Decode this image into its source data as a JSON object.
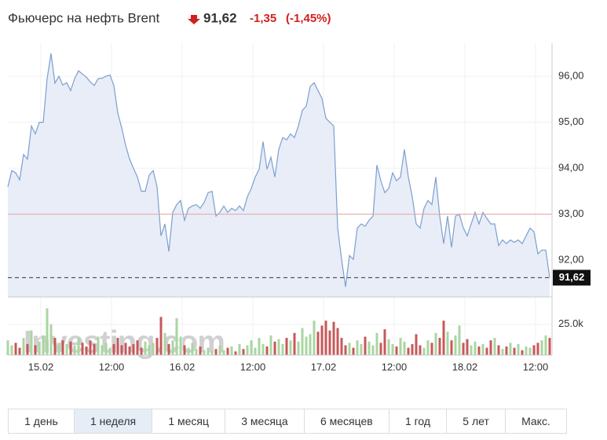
{
  "header": {
    "title": "Фьючерс на нефть Brent",
    "price": "91,62",
    "change": "-1,35",
    "change_pct": "(-1,45%)"
  },
  "chart_data": {
    "type": "area",
    "watermark": "Investing.com",
    "line_color": "#7d9fd0",
    "fill_color": "#e8edf7",
    "up_color": "#a9d6a0",
    "down_color": "#c7585a",
    "reference_value": 93,
    "reference_color": "#e3a5a0",
    "last": {
      "value": 91.62,
      "label": "91,62"
    },
    "xlim": [
      -336,
      5208
    ],
    "xticks": [
      {
        "value": 0,
        "label": "15.02"
      },
      {
        "value": 720,
        "label": "12:00"
      },
      {
        "value": 1440,
        "label": "16.02"
      },
      {
        "value": 2160,
        "label": "12:00"
      },
      {
        "value": 2880,
        "label": "17.02"
      },
      {
        "value": 3600,
        "label": "12:00"
      },
      {
        "value": 4320,
        "label": "18.02"
      },
      {
        "value": 5040,
        "label": "12:00"
      }
    ],
    "ylim": [
      91.2,
      96.72
    ],
    "yticks": [
      {
        "value": 92,
        "label": "92,00"
      },
      {
        "value": 93,
        "label": "93,00"
      },
      {
        "value": 94,
        "label": "94,00"
      },
      {
        "value": 95,
        "label": "95,00"
      },
      {
        "value": 96,
        "label": "96,00"
      }
    ],
    "y2lim": [
      0,
      44000
    ],
    "y2ticks": [
      {
        "value": 25000,
        "label": "25.0k"
      }
    ],
    "grid": true,
    "x": [
      -336,
      -296,
      -256,
      -216,
      -176,
      -136,
      -96,
      -56,
      -16,
      24,
      64,
      104,
      144,
      184,
      224,
      264,
      304,
      344,
      384,
      424,
      464,
      504,
      544,
      584,
      624,
      664,
      704,
      744,
      784,
      824,
      864,
      904,
      944,
      984,
      1024,
      1064,
      1104,
      1144,
      1184,
      1224,
      1264,
      1304,
      1344,
      1384,
      1424,
      1464,
      1504,
      1544,
      1584,
      1624,
      1664,
      1704,
      1744,
      1784,
      1824,
      1864,
      1904,
      1944,
      1984,
      2024,
      2064,
      2104,
      2144,
      2184,
      2224,
      2264,
      2304,
      2344,
      2384,
      2424,
      2464,
      2504,
      2544,
      2584,
      2624,
      2664,
      2704,
      2744,
      2784,
      2824,
      2864,
      2904,
      2944,
      2984,
      3024,
      3064,
      3104,
      3144,
      3184,
      3224,
      3264,
      3304,
      3344,
      3384,
      3424,
      3464,
      3504,
      3544,
      3584,
      3624,
      3664,
      3704,
      3744,
      3784,
      3824,
      3864,
      3904,
      3944,
      3984,
      4024,
      4064,
      4104,
      4144,
      4184,
      4224,
      4264,
      4304,
      4344,
      4384,
      4424,
      4464,
      4504,
      4544,
      4584,
      4624,
      4664,
      4704,
      4744,
      4784,
      4824,
      4864,
      4904,
      4944,
      4984,
      5024,
      5064,
      5104,
      5144,
      5184
    ],
    "values": [
      93.6,
      93.95,
      93.9,
      93.75,
      94.3,
      94.2,
      94.92,
      94.75,
      95.0,
      95.0,
      95.95,
      96.5,
      95.85,
      96.0,
      95.81,
      95.86,
      95.69,
      95.95,
      96.12,
      96.05,
      95.98,
      95.88,
      95.8,
      95.95,
      95.96,
      96.0,
      96.03,
      95.8,
      95.2,
      94.88,
      94.5,
      94.2,
      94.0,
      93.81,
      93.5,
      93.5,
      93.85,
      93.95,
      93.6,
      92.53,
      92.79,
      92.19,
      93.04,
      93.21,
      93.3,
      92.87,
      93.13,
      93.18,
      93.21,
      93.13,
      93.26,
      93.47,
      93.5,
      92.96,
      93.04,
      93.18,
      93.04,
      93.13,
      93.08,
      93.18,
      93.08,
      93.38,
      93.56,
      93.81,
      93.98,
      94.58,
      93.98,
      94.24,
      93.81,
      94.41,
      94.67,
      94.62,
      94.75,
      94.67,
      94.92,
      95.26,
      95.35,
      95.78,
      95.86,
      95.69,
      95.52,
      95.09,
      95.0,
      94.92,
      92.7,
      92.02,
      91.42,
      92.1,
      92.02,
      92.7,
      92.79,
      92.74,
      92.87,
      92.96,
      94.07,
      93.73,
      93.47,
      93.56,
      93.9,
      93.73,
      93.81,
      94.41,
      93.81,
      93.38,
      92.79,
      92.7,
      93.13,
      93.3,
      93.21,
      93.81,
      92.96,
      92.36,
      92.96,
      92.28,
      92.96,
      93.0,
      92.7,
      92.53,
      92.79,
      93.04,
      92.79,
      93.04,
      92.91,
      92.79,
      92.79,
      92.32,
      92.44,
      92.36,
      92.44,
      92.39,
      92.44,
      92.36,
      92.53,
      92.7,
      92.62,
      92.14,
      92.22,
      92.22,
      91.62
    ],
    "volume": [
      12000,
      8000,
      10000,
      6000,
      14000,
      9000,
      20000,
      8000,
      11000,
      16000,
      38000,
      25000,
      14000,
      10000,
      12000,
      9000,
      11000,
      8000,
      14000,
      10000,
      7000,
      12000,
      9000,
      15000,
      8000,
      10000,
      6000,
      9000,
      14000,
      8000,
      10000,
      7000,
      9000,
      12000,
      6000,
      11000,
      8000,
      10000,
      14000,
      31000,
      18000,
      9000,
      12000,
      30000,
      15000,
      8000,
      6000,
      10000,
      5000,
      7000,
      4000,
      6000,
      3000,
      5000,
      8000,
      4000,
      6000,
      7000,
      3000,
      9000,
      5000,
      8000,
      12000,
      6000,
      14000,
      9000,
      7000,
      16000,
      11000,
      13000,
      9000,
      14000,
      12000,
      18000,
      11000,
      22000,
      15000,
      17000,
      28000,
      19000,
      24000,
      28000,
      20000,
      27000,
      22000,
      14000,
      8000,
      10000,
      6000,
      12000,
      9000,
      15000,
      11000,
      8000,
      18000,
      10000,
      21000,
      13000,
      9000,
      7000,
      14000,
      11000,
      6000,
      9000,
      17000,
      8000,
      6000,
      12000,
      10000,
      18000,
      14000,
      28000,
      19000,
      12000,
      16000,
      24000,
      10000,
      13000,
      8000,
      11000,
      7000,
      9000,
      6000,
      12000,
      14000,
      8000,
      5000,
      7000,
      10000,
      6000,
      9000,
      4000,
      7000,
      6000,
      8000,
      10000,
      12000,
      16000,
      14000
    ]
  },
  "buttons": [
    {
      "label": "1 день"
    },
    {
      "label": "1 неделя",
      "selected": true
    },
    {
      "label": "1 месяц"
    },
    {
      "label": "3 месяца"
    },
    {
      "label": "6 месяцев"
    },
    {
      "label": "1 год"
    },
    {
      "label": "5 лет"
    },
    {
      "label": "Макс."
    }
  ]
}
